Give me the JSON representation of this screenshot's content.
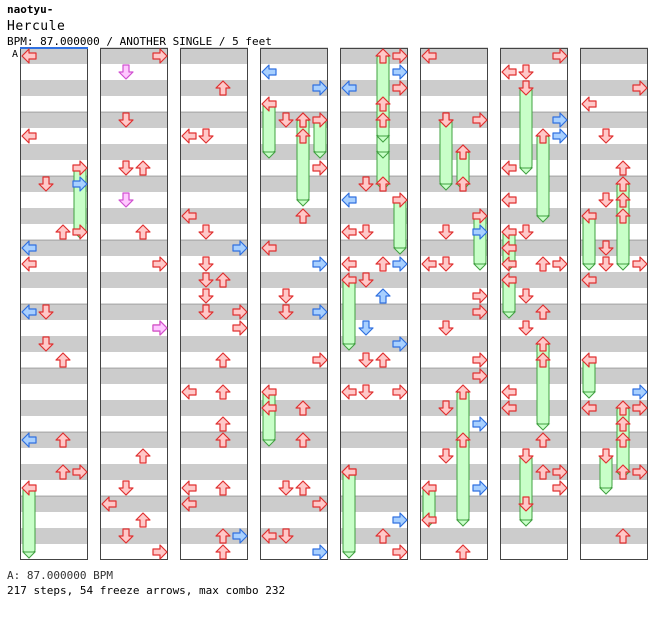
{
  "header": {
    "author": "naotyu-",
    "song_title": "Hercule",
    "bpm_line": "BPM: 87.000000 / ANOTHER SINGLE / 5 feet",
    "bpm_marker": "A"
  },
  "footer": {
    "bpm_note": "A: 87.000000 BPM",
    "stats": "217 steps, 54 freeze arrows, max combo 232"
  },
  "colors": {
    "band": "#cccccc",
    "red_fill": "#ffc8c8",
    "red_stroke": "#e03030",
    "blue_fill": "#a8d0ff",
    "blue_stroke": "#3070e0",
    "pink_fill": "#ffc8ff",
    "pink_stroke": "#d050d0",
    "freeze_fill": "#c8ffc8",
    "freeze_stroke": "#40a040"
  },
  "chart_data": {
    "type": "step_chart",
    "lanes": [
      "left",
      "down",
      "up",
      "right"
    ],
    "measures_per_column": 8,
    "columns": [
      {
        "notes": [],
        "freezes": []
      },
      {
        "notes": [],
        "freezes": []
      },
      {
        "notes": [],
        "freezes": []
      },
      {
        "notes": [],
        "freezes": []
      },
      {
        "notes": [],
        "freezes": []
      },
      {
        "notes": [],
        "freezes": []
      },
      {
        "notes": [],
        "freezes": []
      },
      {
        "notes": [],
        "freezes": []
      }
    ]
  }
}
